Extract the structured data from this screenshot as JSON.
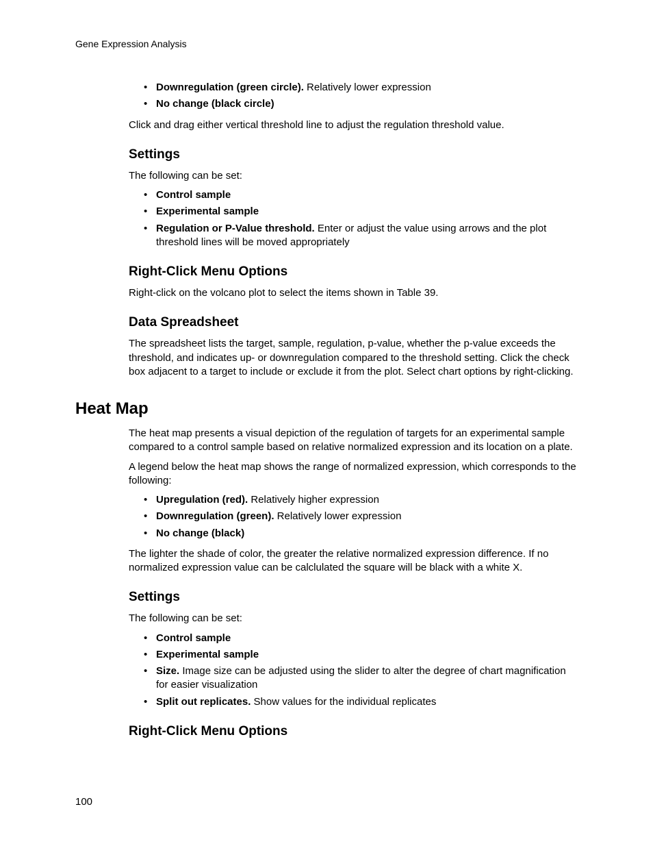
{
  "header": {
    "running": "Gene Expression Analysis"
  },
  "footer": {
    "page_number": "100"
  },
  "intro": {
    "bullets": [
      {
        "bold": "Downregulation (green circle).",
        "rest": " Relatively lower expression"
      },
      {
        "bold": "No change (black circle)",
        "rest": ""
      }
    ],
    "after": "Click and drag either vertical threshold line to adjust the regulation threshold value."
  },
  "settings1": {
    "heading": "Settings",
    "lead": "The following can be set:",
    "bullets": [
      {
        "bold": "Control sample",
        "rest": ""
      },
      {
        "bold": "Experimental sample",
        "rest": ""
      },
      {
        "bold": "Regulation or P-Value threshold.",
        "rest": " Enter or adjust the value using arrows and the plot threshold lines will be moved appropriately"
      }
    ]
  },
  "rcm1": {
    "heading": "Right-Click Menu Options",
    "para": "Right-click on the volcano plot to select the items shown in Table 39."
  },
  "dataspread": {
    "heading": "Data Spreadsheet",
    "para": "The spreadsheet lists the target, sample, regulation, p-value, whether the p-value exceeds the threshold, and indicates up- or downregulation compared to the threshold setting. Click the check box adjacent to a target to include or exclude it from the plot. Select chart options by right-clicking."
  },
  "heatmap": {
    "heading": "Heat Map",
    "para1": "The heat map presents a visual depiction of the regulation of targets for an experimental sample compared to a control sample based on relative normalized expression and its location on a plate.",
    "para2": "A legend below the heat map shows the range of normalized expression, which corresponds to the following:",
    "bullets": [
      {
        "bold": "Upregulation (red).",
        "rest": " Relatively higher expression"
      },
      {
        "bold": "Downregulation (green).",
        "rest": " Relatively lower expression"
      },
      {
        "bold": "No change (black)",
        "rest": ""
      }
    ],
    "para3": "The lighter the shade of color, the greater the relative normalized expression difference. If no normalized expression value can be calclulated the square will be black with a white X."
  },
  "settings2": {
    "heading": "Settings",
    "lead": "The following can be set:",
    "bullets": [
      {
        "bold": "Control sample",
        "rest": ""
      },
      {
        "bold": "Experimental sample",
        "rest": ""
      },
      {
        "bold": "Size.",
        "rest": " Image size can be adjusted using the slider to alter the degree of chart magnification for easier visualization"
      },
      {
        "bold": "Split out replicates.",
        "rest": " Show values for the individual replicates"
      }
    ]
  },
  "rcm2": {
    "heading": "Right-Click Menu Options"
  }
}
